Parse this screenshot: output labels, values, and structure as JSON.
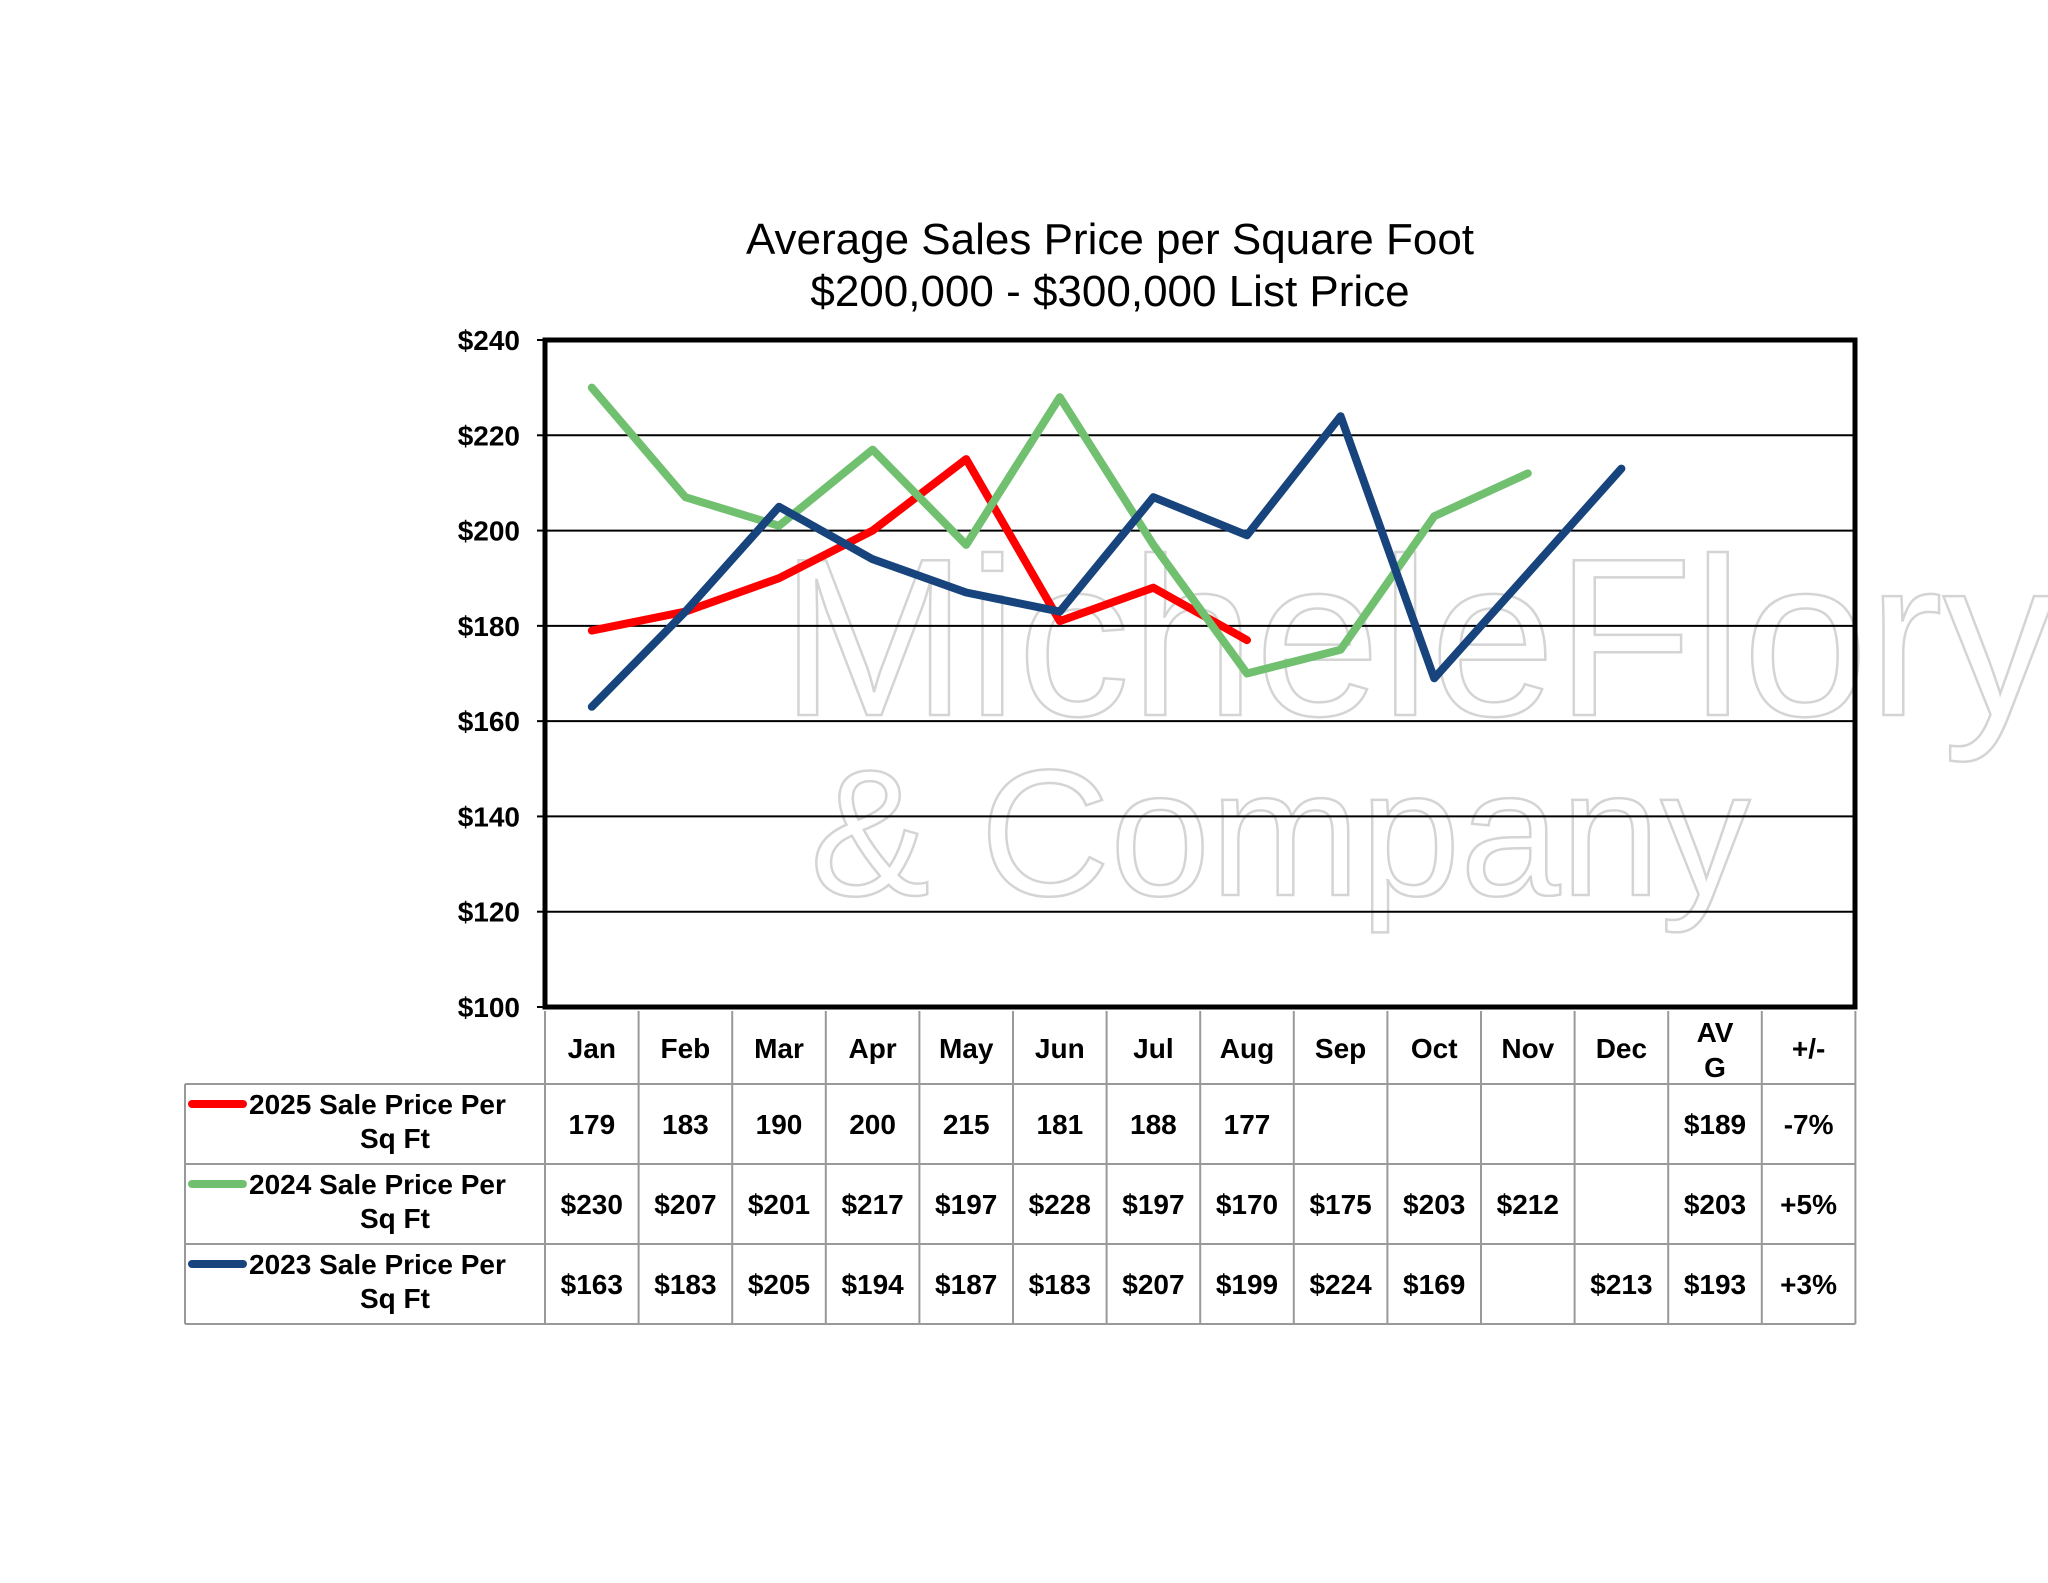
{
  "chart_data": {
    "type": "line",
    "title": "Average Sales Price per Square Foot",
    "subtitle": "$200,000 - $300,000 List Price",
    "categories": [
      "Jan",
      "Feb",
      "Mar",
      "Apr",
      "May",
      "Jun",
      "Jul",
      "Aug",
      "Sep",
      "Oct",
      "Nov",
      "Dec"
    ],
    "summary_headers": [
      "AV G",
      "+/-"
    ],
    "ylim": [
      100,
      240
    ],
    "yticks": [
      100,
      120,
      140,
      160,
      180,
      200,
      220,
      240
    ],
    "ytick_labels": [
      "$100",
      "$120",
      "$140",
      "$160",
      "$180",
      "$200",
      "$220",
      "$240"
    ],
    "grid": true,
    "series": [
      {
        "name": "2025 Sale Price Per Sq Ft",
        "color": "#ff0000",
        "values": [
          179,
          183,
          190,
          200,
          215,
          181,
          188,
          177,
          null,
          null,
          null,
          null
        ],
        "table_values": [
          "179",
          "183",
          "190",
          "200",
          "215",
          "181",
          "188",
          "177",
          "",
          "",
          "",
          ""
        ],
        "avg": "$189",
        "change": "-7%"
      },
      {
        "name": "2024 Sale Price Per Sq Ft",
        "color": "#70c070",
        "values": [
          230,
          207,
          201,
          217,
          197,
          228,
          197,
          170,
          175,
          203,
          212,
          null
        ],
        "table_values": [
          "$230",
          "$207",
          "$201",
          "$217",
          "$197",
          "$228",
          "$197",
          "$170",
          "$175",
          "$203",
          "$212",
          ""
        ],
        "avg": "$203",
        "change": "+5%"
      },
      {
        "name": "2023 Sale Price Per Sq Ft",
        "color": "#17447c",
        "values": [
          163,
          183,
          205,
          194,
          187,
          183,
          207,
          199,
          224,
          169,
          191,
          213
        ],
        "table_values": [
          "$163",
          "$183",
          "$205",
          "$194",
          "$187",
          "$183",
          "$207",
          "$199",
          "$224",
          "$169",
          "",
          "$213"
        ],
        "avg": "$193",
        "change": "+3%"
      }
    ]
  },
  "watermark": {
    "line1": "MicheleFlory",
    "line2": "& Company",
    "color": "#d4d4d4"
  }
}
